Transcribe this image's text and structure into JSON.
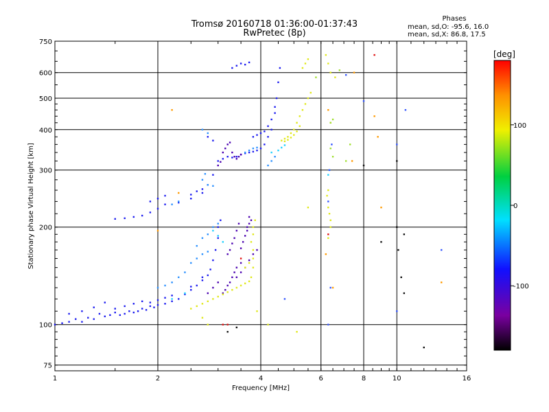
{
  "chart_data": {
    "type": "scatter",
    "title": "Tromsø 20160718 01:36:00-01:37:43",
    "subtitle": "RwPretec (8p)",
    "xlabel": "Frequency [MHz]",
    "ylabel": "Stationary phase Virtual Height [km]",
    "x_scale": "log",
    "y_scale": "log",
    "xlim": [
      1,
      16
    ],
    "ylim": [
      72,
      750
    ],
    "x_ticks": [
      1,
      2,
      4,
      6,
      8,
      10,
      16
    ],
    "y_ticks": [
      75,
      100,
      200,
      300,
      400,
      500,
      600,
      750
    ],
    "grid": true,
    "phases_label": "Phases",
    "phase_stats": [
      "mean, sd,O: -95.6, 16.0",
      "mean, sd,X: 86.8, 17.5"
    ],
    "colorbar": {
      "label": "[deg]",
      "range": [
        -180,
        180
      ],
      "ticks": [
        -100,
        0,
        100
      ]
    },
    "series": [
      {
        "name": "",
        "color": "#1c1cf0",
        "points": [
          [
            1.0,
            100
          ],
          [
            1.05,
            101
          ],
          [
            1.1,
            102
          ],
          [
            1.15,
            104
          ],
          [
            1.2,
            102
          ],
          [
            1.25,
            105
          ],
          [
            1.3,
            104
          ],
          [
            1.35,
            108
          ],
          [
            1.4,
            106
          ],
          [
            1.45,
            107
          ],
          [
            1.5,
            109
          ],
          [
            1.55,
            107
          ],
          [
            1.6,
            108
          ],
          [
            1.65,
            110
          ],
          [
            1.7,
            109
          ],
          [
            1.75,
            110
          ],
          [
            1.8,
            112
          ],
          [
            1.85,
            111
          ],
          [
            1.9,
            114
          ],
          [
            1.95,
            113
          ],
          [
            2.0,
            115
          ],
          [
            2.1,
            116
          ],
          [
            2.2,
            118
          ],
          [
            2.3,
            120
          ],
          [
            2.4,
            124
          ],
          [
            2.5,
            128
          ],
          [
            2.6,
            132
          ],
          [
            2.7,
            137
          ],
          [
            2.8,
            142
          ],
          [
            1.1,
            108
          ],
          [
            1.2,
            110
          ],
          [
            1.3,
            113
          ],
          [
            1.4,
            117
          ],
          [
            1.5,
            112
          ],
          [
            1.6,
            114
          ],
          [
            1.7,
            116
          ],
          [
            1.8,
            118
          ],
          [
            1.9,
            117
          ],
          [
            2.0,
            119
          ],
          [
            2.1,
            121
          ],
          [
            2.2,
            123
          ],
          [
            2.5,
            131
          ],
          [
            2.7,
            140
          ],
          [
            2.85,
            148
          ],
          [
            2.9,
            158
          ],
          [
            2.95,
            170
          ],
          [
            3.0,
            185
          ],
          [
            3.0,
            200
          ],
          [
            3.05,
            210
          ],
          [
            1.5,
            212
          ],
          [
            1.6,
            213
          ],
          [
            1.7,
            215
          ],
          [
            1.8,
            217
          ],
          [
            1.9,
            222
          ],
          [
            2.0,
            228
          ],
          [
            2.1,
            235
          ],
          [
            2.3,
            238
          ],
          [
            2.5,
            245
          ],
          [
            2.7,
            255
          ],
          [
            2.8,
            270
          ],
          [
            2.9,
            290
          ],
          [
            2.5,
            252
          ],
          [
            2.6,
            258
          ],
          [
            2.7,
            262
          ],
          [
            1.9,
            240
          ],
          [
            2.0,
            245
          ],
          [
            2.1,
            250
          ],
          [
            3.0,
            320
          ],
          [
            3.1,
            325
          ],
          [
            3.2,
            330
          ],
          [
            3.3,
            328
          ],
          [
            3.4,
            330
          ],
          [
            3.5,
            335
          ],
          [
            3.6,
            338
          ],
          [
            3.7,
            340
          ],
          [
            3.8,
            342
          ],
          [
            3.9,
            345
          ],
          [
            4.0,
            350
          ],
          [
            4.1,
            360
          ],
          [
            4.2,
            380
          ],
          [
            4.3,
            400
          ],
          [
            4.4,
            450
          ],
          [
            4.45,
            500
          ],
          [
            4.5,
            560
          ],
          [
            4.55,
            620
          ],
          [
            3.8,
            380
          ],
          [
            3.9,
            385
          ],
          [
            4.0,
            390
          ],
          [
            4.1,
            395
          ],
          [
            4.2,
            410
          ],
          [
            4.3,
            430
          ],
          [
            4.4,
            470
          ],
          [
            3.3,
            620
          ],
          [
            3.4,
            630
          ],
          [
            3.5,
            640
          ],
          [
            3.6,
            635
          ],
          [
            3.7,
            645
          ],
          [
            2.8,
            380
          ],
          [
            2.9,
            370
          ]
        ]
      },
      {
        "name": "",
        "color": "#4a00b0",
        "points": [
          [
            3.1,
            340
          ],
          [
            3.15,
            350
          ],
          [
            3.2,
            360
          ],
          [
            3.25,
            365
          ],
          [
            3.3,
            340
          ],
          [
            3.35,
            330
          ],
          [
            3.4,
            325
          ],
          [
            3.45,
            330
          ],
          [
            3.5,
            335
          ],
          [
            3.0,
            310
          ],
          [
            3.05,
            318
          ],
          [
            3.1,
            125
          ],
          [
            3.15,
            128
          ],
          [
            3.2,
            132
          ],
          [
            3.25,
            135
          ],
          [
            3.3,
            140
          ],
          [
            3.35,
            145
          ],
          [
            3.4,
            150
          ],
          [
            3.5,
            155
          ],
          [
            3.2,
            165
          ],
          [
            3.25,
            170
          ],
          [
            3.3,
            178
          ],
          [
            3.35,
            185
          ],
          [
            3.4,
            195
          ],
          [
            3.45,
            205
          ],
          [
            3.5,
            172
          ],
          [
            3.55,
            180
          ],
          [
            3.6,
            188
          ],
          [
            3.65,
            195
          ],
          [
            3.7,
            205
          ],
          [
            3.75,
            210
          ],
          [
            3.4,
            140
          ],
          [
            3.5,
            145
          ],
          [
            3.6,
            150
          ],
          [
            3.7,
            158
          ],
          [
            3.8,
            165
          ],
          [
            3.9,
            170
          ],
          [
            3.7,
            215
          ],
          [
            3.65,
            200
          ],
          [
            2.8,
            125
          ],
          [
            2.9,
            130
          ],
          [
            3.0,
            135
          ]
        ]
      },
      {
        "name": "",
        "color": "#2a90ff",
        "points": [
          [
            2.6,
            175
          ],
          [
            2.7,
            185
          ],
          [
            2.8,
            190
          ],
          [
            2.9,
            200
          ],
          [
            3.0,
            205
          ],
          [
            2.5,
            155
          ],
          [
            2.6,
            160
          ],
          [
            2.7,
            165
          ],
          [
            2.8,
            168
          ],
          [
            2.3,
            140
          ],
          [
            2.4,
            145
          ],
          [
            2.0,
            130
          ],
          [
            2.1,
            132
          ],
          [
            2.2,
            135
          ],
          [
            2.9,
            268
          ],
          [
            2.8,
            270
          ],
          [
            2.7,
            280
          ],
          [
            2.75,
            292
          ],
          [
            3.6,
            340
          ],
          [
            3.7,
            345
          ],
          [
            3.8,
            350
          ],
          [
            3.9,
            352
          ],
          [
            4.2,
            310
          ],
          [
            4.3,
            320
          ],
          [
            4.4,
            330
          ],
          [
            2.7,
            400
          ],
          [
            2.8,
            390
          ],
          [
            2.2,
            235
          ],
          [
            2.3,
            240
          ]
        ]
      },
      {
        "name": "",
        "color": "#e0e81a",
        "points": [
          [
            2.5,
            112
          ],
          [
            2.6,
            114
          ],
          [
            2.7,
            116
          ],
          [
            2.8,
            118
          ],
          [
            2.9,
            120
          ],
          [
            3.0,
            122
          ],
          [
            3.1,
            124
          ],
          [
            3.2,
            126
          ],
          [
            3.3,
            128
          ],
          [
            3.4,
            130
          ],
          [
            3.5,
            132
          ],
          [
            3.6,
            134
          ],
          [
            3.7,
            136
          ],
          [
            3.75,
            140
          ],
          [
            3.8,
            150
          ],
          [
            3.8,
            160
          ],
          [
            3.8,
            170
          ],
          [
            3.75,
            180
          ],
          [
            3.8,
            190
          ],
          [
            3.8,
            200
          ],
          [
            3.85,
            210
          ],
          [
            3.6,
            150
          ],
          [
            3.7,
            155
          ],
          [
            4.6,
            370
          ],
          [
            4.7,
            375
          ],
          [
            4.8,
            380
          ],
          [
            4.9,
            390
          ],
          [
            5.0,
            400
          ],
          [
            5.1,
            420
          ],
          [
            5.2,
            440
          ],
          [
            5.3,
            460
          ],
          [
            5.4,
            480
          ],
          [
            5.5,
            500
          ],
          [
            5.6,
            520
          ],
          [
            5.2,
            410
          ],
          [
            5.1,
            395
          ],
          [
            5.0,
            385
          ],
          [
            4.9,
            378
          ],
          [
            4.8,
            372
          ],
          [
            4.7,
            368
          ],
          [
            5.3,
            620
          ],
          [
            5.4,
            640
          ],
          [
            5.5,
            660
          ],
          [
            6.2,
            680
          ],
          [
            6.3,
            640
          ],
          [
            6.4,
            600
          ],
          [
            6.6,
            580
          ],
          [
            6.3,
            230
          ],
          [
            6.35,
            220
          ],
          [
            6.4,
            210
          ],
          [
            6.4,
            200
          ],
          [
            6.3,
            185
          ],
          [
            2.8,
            100
          ],
          [
            2.7,
            105
          ],
          [
            5.5,
            230
          ],
          [
            3.9,
            110
          ],
          [
            4.2,
            100
          ],
          [
            5.1,
            95
          ],
          [
            6.25,
            250
          ],
          [
            6.3,
            260
          ]
        ]
      },
      {
        "name": "",
        "color": "#1fd0ff",
        "points": [
          [
            4.5,
            345
          ],
          [
            4.6,
            352
          ],
          [
            4.7,
            358
          ],
          [
            4.3,
            340
          ],
          [
            2.9,
            195
          ],
          [
            3.0,
            188
          ],
          [
            3.1,
            180
          ],
          [
            6.3,
            290
          ],
          [
            6.35,
            300
          ],
          [
            2.4,
            125
          ],
          [
            2.2,
            120
          ]
        ]
      },
      {
        "name": "",
        "color": "#e01010",
        "points": [
          [
            8.6,
            680
          ],
          [
            6.3,
            190
          ],
          [
            3.1,
            100
          ],
          [
            3.2,
            100
          ],
          [
            3.5,
            160
          ]
        ]
      },
      {
        "name": "",
        "color": "#101010",
        "points": [
          [
            10.0,
            200
          ],
          [
            10.5,
            190
          ],
          [
            8.0,
            310
          ],
          [
            9.0,
            180
          ],
          [
            10.3,
            140
          ],
          [
            10.1,
            170
          ],
          [
            12.0,
            85
          ],
          [
            10.0,
            320
          ],
          [
            10.5,
            125
          ],
          [
            3.2,
            95
          ],
          [
            3.4,
            98
          ]
        ]
      },
      {
        "name": "",
        "color": "#ff9a00",
        "points": [
          [
            2.0,
            195
          ],
          [
            2.3,
            255
          ],
          [
            2.2,
            460
          ],
          [
            6.3,
            460
          ],
          [
            6.4,
            420
          ],
          [
            8.6,
            440
          ],
          [
            8.8,
            380
          ],
          [
            9.0,
            230
          ],
          [
            13.5,
            135
          ],
          [
            6.2,
            165
          ],
          [
            7.5,
            600
          ],
          [
            7.4,
            320
          ],
          [
            6.5,
            130
          ]
        ]
      },
      {
        "name": "",
        "color": "#a0e030",
        "points": [
          [
            6.4,
            420
          ],
          [
            6.5,
            430
          ],
          [
            7.1,
            320
          ],
          [
            7.3,
            360
          ],
          [
            6.8,
            610
          ],
          [
            5.8,
            580
          ],
          [
            6.4,
            350
          ],
          [
            6.5,
            330
          ]
        ]
      },
      {
        "name": "",
        "color": "#3355ff",
        "points": [
          [
            6.3,
            240
          ],
          [
            6.35,
            300
          ],
          [
            6.4,
            130
          ],
          [
            6.45,
            360
          ],
          [
            7.1,
            590
          ],
          [
            8.0,
            490
          ],
          [
            10.0,
            110
          ],
          [
            10.6,
            460
          ],
          [
            13.5,
            170
          ],
          [
            10.0,
            360
          ],
          [
            4.7,
            120
          ],
          [
            6.3,
            100
          ]
        ]
      }
    ]
  }
}
